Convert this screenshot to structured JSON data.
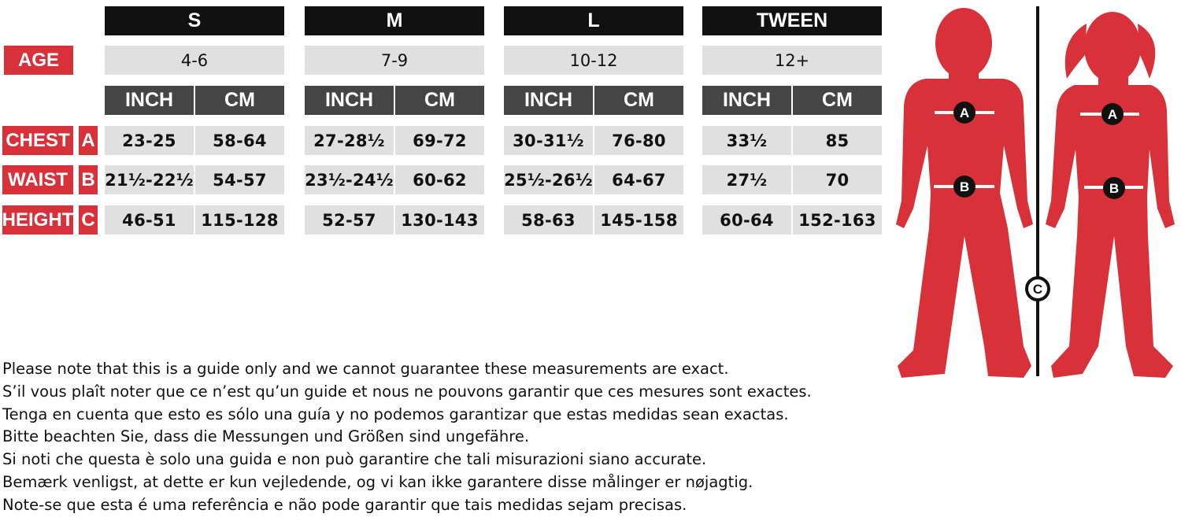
{
  "colors": {
    "red": "#d9313a",
    "black": "#111111",
    "dark_gray": "#454545",
    "light_gray": "#e0e0e0"
  },
  "row_labels": {
    "age": "AGE",
    "chest": "CHEST",
    "chest_letter": "A",
    "waist": "WAIST",
    "waist_letter": "B",
    "height": "HEIGHT",
    "height_letter": "C"
  },
  "sizes": [
    {
      "name": "S",
      "age": "4-6",
      "inch_label": "INCH",
      "cm_label": "CM",
      "chest": [
        "23-25",
        "58-64"
      ],
      "waist": [
        "21½-22½",
        "54-57"
      ],
      "height": [
        "46-51",
        "115-128"
      ]
    },
    {
      "name": "M",
      "age": "7-9",
      "inch_label": "INCH",
      "cm_label": "CM",
      "chest": [
        "27-28½",
        "69-72"
      ],
      "waist": [
        "23½-24½",
        "60-62"
      ],
      "height": [
        "52-57",
        "130-143"
      ]
    },
    {
      "name": "L",
      "age": "10-12",
      "inch_label": "INCH",
      "cm_label": "CM",
      "chest": [
        "30-31½",
        "76-80"
      ],
      "waist": [
        "25½-26½",
        "64-67"
      ],
      "height": [
        "58-63",
        "145-158"
      ]
    },
    {
      "name": "TWEEN",
      "age": "12+",
      "inch_label": "INCH",
      "cm_label": "CM",
      "chest": [
        "33½",
        "85"
      ],
      "waist": [
        "27½",
        "70"
      ],
      "height": [
        "60-64",
        "152-163"
      ]
    }
  ],
  "figure": {
    "markers": [
      "A",
      "B",
      "C"
    ]
  },
  "notes": [
    "Please note that this is a guide only and we cannot guarantee these measurements are exact.",
    "S’il vous plaît noter que ce n’est qu’un guide et nous ne pouvons garantir que ces mesures sont exactes.",
    "Tenga en cuenta que esto es sólo una guía y no podemos garantizar que estas medidas sean exactas.",
    "Bitte beachten Sie, dass die Messungen und Größen sind ungefähre.",
    "Si noti che questa è solo una guida e non può garantire che tali misurazioni siano accurate.",
    "Bemærk venligst, at dette er kun vejledende, og vi kan ikke garantere disse målinger er nøjagtig.",
    "Note-se que esta é uma referência e não pode garantir que tais medidas sejam precisas."
  ]
}
